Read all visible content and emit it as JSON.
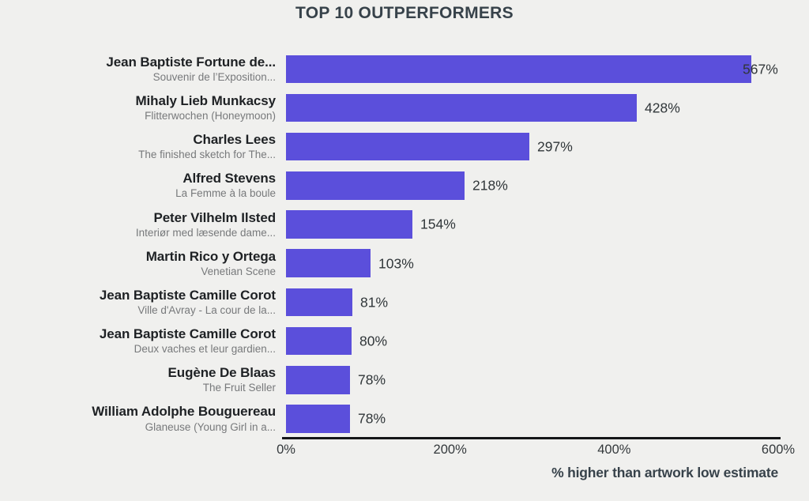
{
  "page": {
    "background": "#f0f0ee"
  },
  "colors": {
    "bar": "#5b4fdb",
    "title": "#37424a",
    "artist": "#1e2124",
    "artwork": "#77797b",
    "value": "#303639",
    "tick": "#33383b",
    "axis_line": "#141618",
    "xlabel": "#37424a"
  },
  "chart_data": {
    "type": "bar",
    "orientation": "horizontal",
    "title": "TOP 10 OUTPERFORMERS",
    "xlabel": "% higher than artwork low estimate",
    "xlim": [
      0,
      600
    ],
    "grid": false,
    "legend": false,
    "xticks": [
      {
        "value": 0,
        "label": "0%"
      },
      {
        "value": 200,
        "label": "200%"
      },
      {
        "value": 400,
        "label": "400%"
      },
      {
        "value": 600,
        "label": "600%"
      }
    ],
    "rows": [
      {
        "artist": "Jean Baptiste Fortune de...",
        "artwork": "Souvenir de l’Exposition...",
        "value": 567,
        "value_label": "567%"
      },
      {
        "artist": "Mihaly Lieb Munkacsy",
        "artwork": "Flitterwochen (Honeymoon)",
        "value": 428,
        "value_label": "428%"
      },
      {
        "artist": "Charles Lees",
        "artwork": "The finished sketch for The...",
        "value": 297,
        "value_label": "297%"
      },
      {
        "artist": "Alfred Stevens",
        "artwork": "La Femme à la boule",
        "value": 218,
        "value_label": "218%"
      },
      {
        "artist": "Peter Vilhelm Ilsted",
        "artwork": "Interiør med læsende dame...",
        "value": 154,
        "value_label": "154%"
      },
      {
        "artist": "Martin Rico y Ortega",
        "artwork": "Venetian Scene",
        "value": 103,
        "value_label": "103%"
      },
      {
        "artist": "Jean Baptiste Camille Corot",
        "artwork": "Ville d'Avray - La cour de la...",
        "value": 81,
        "value_label": "81%"
      },
      {
        "artist": "Jean Baptiste Camille Corot",
        "artwork": "Deux vaches et leur gardien...",
        "value": 80,
        "value_label": "80%"
      },
      {
        "artist": "Eugène De Blaas",
        "artwork": "The Fruit Seller",
        "value": 78,
        "value_label": "78%"
      },
      {
        "artist": "William Adolphe Bouguereau",
        "artwork": "Glaneuse (Young Girl in a...",
        "value": 78,
        "value_label": "78%"
      }
    ]
  }
}
